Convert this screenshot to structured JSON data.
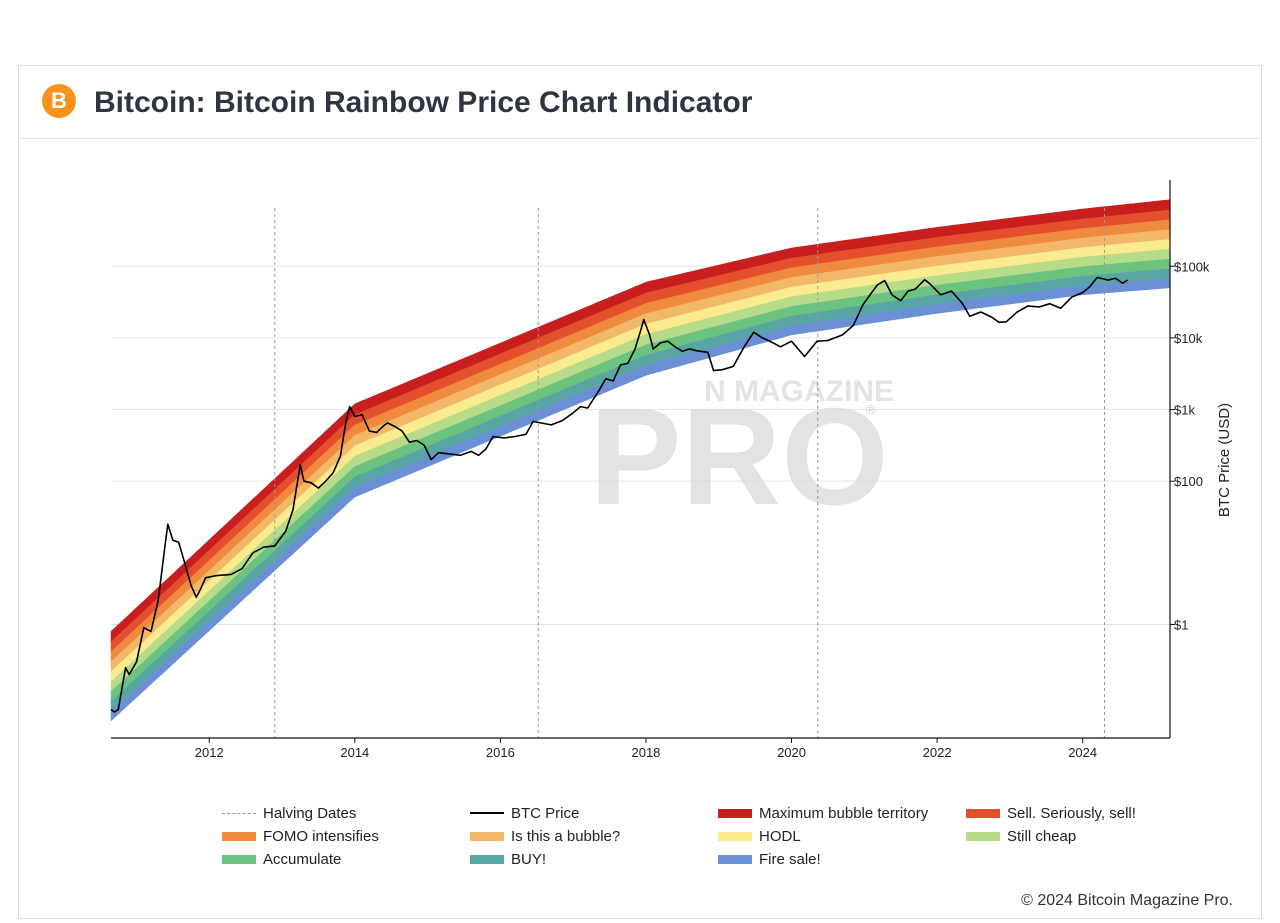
{
  "header": {
    "logo_glyph": "B",
    "title": "Bitcoin: Bitcoin Rainbow Price Chart Indicator"
  },
  "watermark": {
    "top": "N MAGAZINE",
    "main": "PRO",
    "mark": "®"
  },
  "copyright": "© 2024 Bitcoin Magazine Pro.",
  "legend": [
    {
      "label": "Halving Dates",
      "kind": "dash",
      "color": "#999999"
    },
    {
      "label": "BTC Price",
      "kind": "line",
      "color": "#000000"
    },
    {
      "label": "Maximum bubble territory",
      "kind": "band",
      "color": "#c81e1e"
    },
    {
      "label": "Sell. Seriously, sell!",
      "kind": "band",
      "color": "#e4502d"
    },
    {
      "label": "FOMO intensifies",
      "kind": "band",
      "color": "#ef8a3f"
    },
    {
      "label": "Is this a bubble?",
      "kind": "band",
      "color": "#f3b867"
    },
    {
      "label": "HODL",
      "kind": "band",
      "color": "#faeb8e"
    },
    {
      "label": "Still cheap",
      "kind": "band",
      "color": "#b6dc8a"
    },
    {
      "label": "Accumulate",
      "kind": "band",
      "color": "#6cc380"
    },
    {
      "label": "BUY!",
      "kind": "band",
      "color": "#57a6a4"
    },
    {
      "label": "Fire sale!",
      "kind": "band",
      "color": "#6b8fd3"
    }
  ],
  "chart_data": {
    "type": "line",
    "title": "Bitcoin: Bitcoin Rainbow Price Chart Indicator",
    "xlabel": "",
    "ylabel": "BTC Price (USD)",
    "yscale": "log",
    "xlim": [
      2010.65,
      2025.2
    ],
    "ylim": [
      0.026,
      1500000
    ],
    "x_ticks": [
      2012,
      2014,
      2016,
      2018,
      2020,
      2022,
      2024
    ],
    "x_tick_labels": [
      "2012",
      "2014",
      "2016",
      "2018",
      "2020",
      "2022",
      "2024"
    ],
    "y_ticks": [
      1,
      100,
      1000,
      10000,
      100000
    ],
    "y_tick_labels": [
      "$1",
      "$100",
      "$1k",
      "$10k",
      "$100k"
    ],
    "grid": "horizontal",
    "halving_dates": [
      2012.9,
      2016.52,
      2020.36,
      2024.3
    ],
    "bands": {
      "names": [
        "Fire sale!",
        "BUY!",
        "Accumulate",
        "Still cheap",
        "HODL",
        "Is this a bubble?",
        "FOMO intensifies",
        "Sell. Seriously, sell!",
        "Maximum bubble territory"
      ],
      "colors": [
        "#6b8fd3",
        "#57a6a4",
        "#6cc380",
        "#b6dc8a",
        "#faeb8e",
        "#f3b867",
        "#ef8a3f",
        "#e4502d",
        "#c81e1e"
      ],
      "bottom_reference": [
        [
          2010.65,
          0.045
        ],
        [
          2014,
          60
        ],
        [
          2018,
          3000
        ],
        [
          2020,
          11000
        ],
        [
          2022,
          22000
        ],
        [
          2024,
          40000
        ],
        [
          2025.2,
          50000
        ]
      ],
      "top_reference": [
        [
          2010.65,
          0.8
        ],
        [
          2014,
          1200
        ],
        [
          2018,
          60000
        ],
        [
          2020,
          180000
        ],
        [
          2022,
          350000
        ],
        [
          2024,
          630000
        ],
        [
          2025.2,
          850000
        ]
      ]
    },
    "series": [
      {
        "name": "BTC Price",
        "color": "#000000",
        "points": [
          [
            2010.65,
            0.065
          ],
          [
            2010.7,
            0.06
          ],
          [
            2010.75,
            0.065
          ],
          [
            2010.85,
            0.25
          ],
          [
            2010.9,
            0.2
          ],
          [
            2011.0,
            0.3
          ],
          [
            2011.1,
            0.9
          ],
          [
            2011.2,
            0.8
          ],
          [
            2011.3,
            2.2
          ],
          [
            2011.38,
            10
          ],
          [
            2011.43,
            25
          ],
          [
            2011.5,
            15
          ],
          [
            2011.58,
            14
          ],
          [
            2011.65,
            8
          ],
          [
            2011.75,
            3.5
          ],
          [
            2011.82,
            2.4
          ],
          [
            2011.88,
            3.1
          ],
          [
            2011.95,
            4.5
          ],
          [
            2012.1,
            4.8
          ],
          [
            2012.3,
            5
          ],
          [
            2012.45,
            6
          ],
          [
            2012.6,
            10
          ],
          [
            2012.75,
            12
          ],
          [
            2012.9,
            12.5
          ],
          [
            2013.05,
            20
          ],
          [
            2013.15,
            40
          ],
          [
            2013.25,
            170
          ],
          [
            2013.3,
            100
          ],
          [
            2013.4,
            95
          ],
          [
            2013.5,
            80
          ],
          [
            2013.6,
            100
          ],
          [
            2013.7,
            130
          ],
          [
            2013.8,
            220
          ],
          [
            2013.88,
            700
          ],
          [
            2013.93,
            1100
          ],
          [
            2014.0,
            800
          ],
          [
            2014.1,
            850
          ],
          [
            2014.2,
            500
          ],
          [
            2014.3,
            480
          ],
          [
            2014.4,
            600
          ],
          [
            2014.45,
            650
          ],
          [
            2014.55,
            580
          ],
          [
            2014.65,
            500
          ],
          [
            2014.75,
            350
          ],
          [
            2014.85,
            370
          ],
          [
            2014.95,
            320
          ],
          [
            2015.05,
            200
          ],
          [
            2015.15,
            250
          ],
          [
            2015.3,
            240
          ],
          [
            2015.45,
            230
          ],
          [
            2015.6,
            260
          ],
          [
            2015.7,
            230
          ],
          [
            2015.8,
            280
          ],
          [
            2015.9,
            420
          ],
          [
            2016.05,
            400
          ],
          [
            2016.2,
            420
          ],
          [
            2016.35,
            450
          ],
          [
            2016.45,
            680
          ],
          [
            2016.55,
            650
          ],
          [
            2016.7,
            610
          ],
          [
            2016.85,
            700
          ],
          [
            2017.0,
            900
          ],
          [
            2017.1,
            1100
          ],
          [
            2017.2,
            1050
          ],
          [
            2017.35,
            1800
          ],
          [
            2017.45,
            2700
          ],
          [
            2017.55,
            2500
          ],
          [
            2017.65,
            4200
          ],
          [
            2017.75,
            4400
          ],
          [
            2017.85,
            7000
          ],
          [
            2017.93,
            13000
          ],
          [
            2017.97,
            18000
          ],
          [
            2018.05,
            11000
          ],
          [
            2018.1,
            7000
          ],
          [
            2018.2,
            8500
          ],
          [
            2018.3,
            9000
          ],
          [
            2018.4,
            7500
          ],
          [
            2018.5,
            6500
          ],
          [
            2018.6,
            7000
          ],
          [
            2018.7,
            6600
          ],
          [
            2018.85,
            6300
          ],
          [
            2018.93,
            3500
          ],
          [
            2019.05,
            3600
          ],
          [
            2019.2,
            4000
          ],
          [
            2019.35,
            7500
          ],
          [
            2019.48,
            12000
          ],
          [
            2019.6,
            10000
          ],
          [
            2019.7,
            9000
          ],
          [
            2019.85,
            7500
          ],
          [
            2020.0,
            9000
          ],
          [
            2020.18,
            5500
          ],
          [
            2020.35,
            9000
          ],
          [
            2020.5,
            9200
          ],
          [
            2020.7,
            11000
          ],
          [
            2020.85,
            15000
          ],
          [
            2020.98,
            29000
          ],
          [
            2021.08,
            40000
          ],
          [
            2021.18,
            55000
          ],
          [
            2021.28,
            63000
          ],
          [
            2021.38,
            40000
          ],
          [
            2021.5,
            33000
          ],
          [
            2021.6,
            45000
          ],
          [
            2021.7,
            48000
          ],
          [
            2021.83,
            65000
          ],
          [
            2021.9,
            57000
          ],
          [
            2022.05,
            40000
          ],
          [
            2022.2,
            45000
          ],
          [
            2022.35,
            30000
          ],
          [
            2022.45,
            20000
          ],
          [
            2022.6,
            23000
          ],
          [
            2022.75,
            19500
          ],
          [
            2022.85,
            16500
          ],
          [
            2022.95,
            16800
          ],
          [
            2023.1,
            23000
          ],
          [
            2023.25,
            28000
          ],
          [
            2023.4,
            27000
          ],
          [
            2023.55,
            30000
          ],
          [
            2023.7,
            26000
          ],
          [
            2023.85,
            37000
          ],
          [
            2024.0,
            43000
          ],
          [
            2024.1,
            52000
          ],
          [
            2024.2,
            70000
          ],
          [
            2024.35,
            64000
          ],
          [
            2024.45,
            68000
          ],
          [
            2024.55,
            58000
          ],
          [
            2024.62,
            64000
          ]
        ]
      }
    ],
    "legend_position": "bottom"
  }
}
